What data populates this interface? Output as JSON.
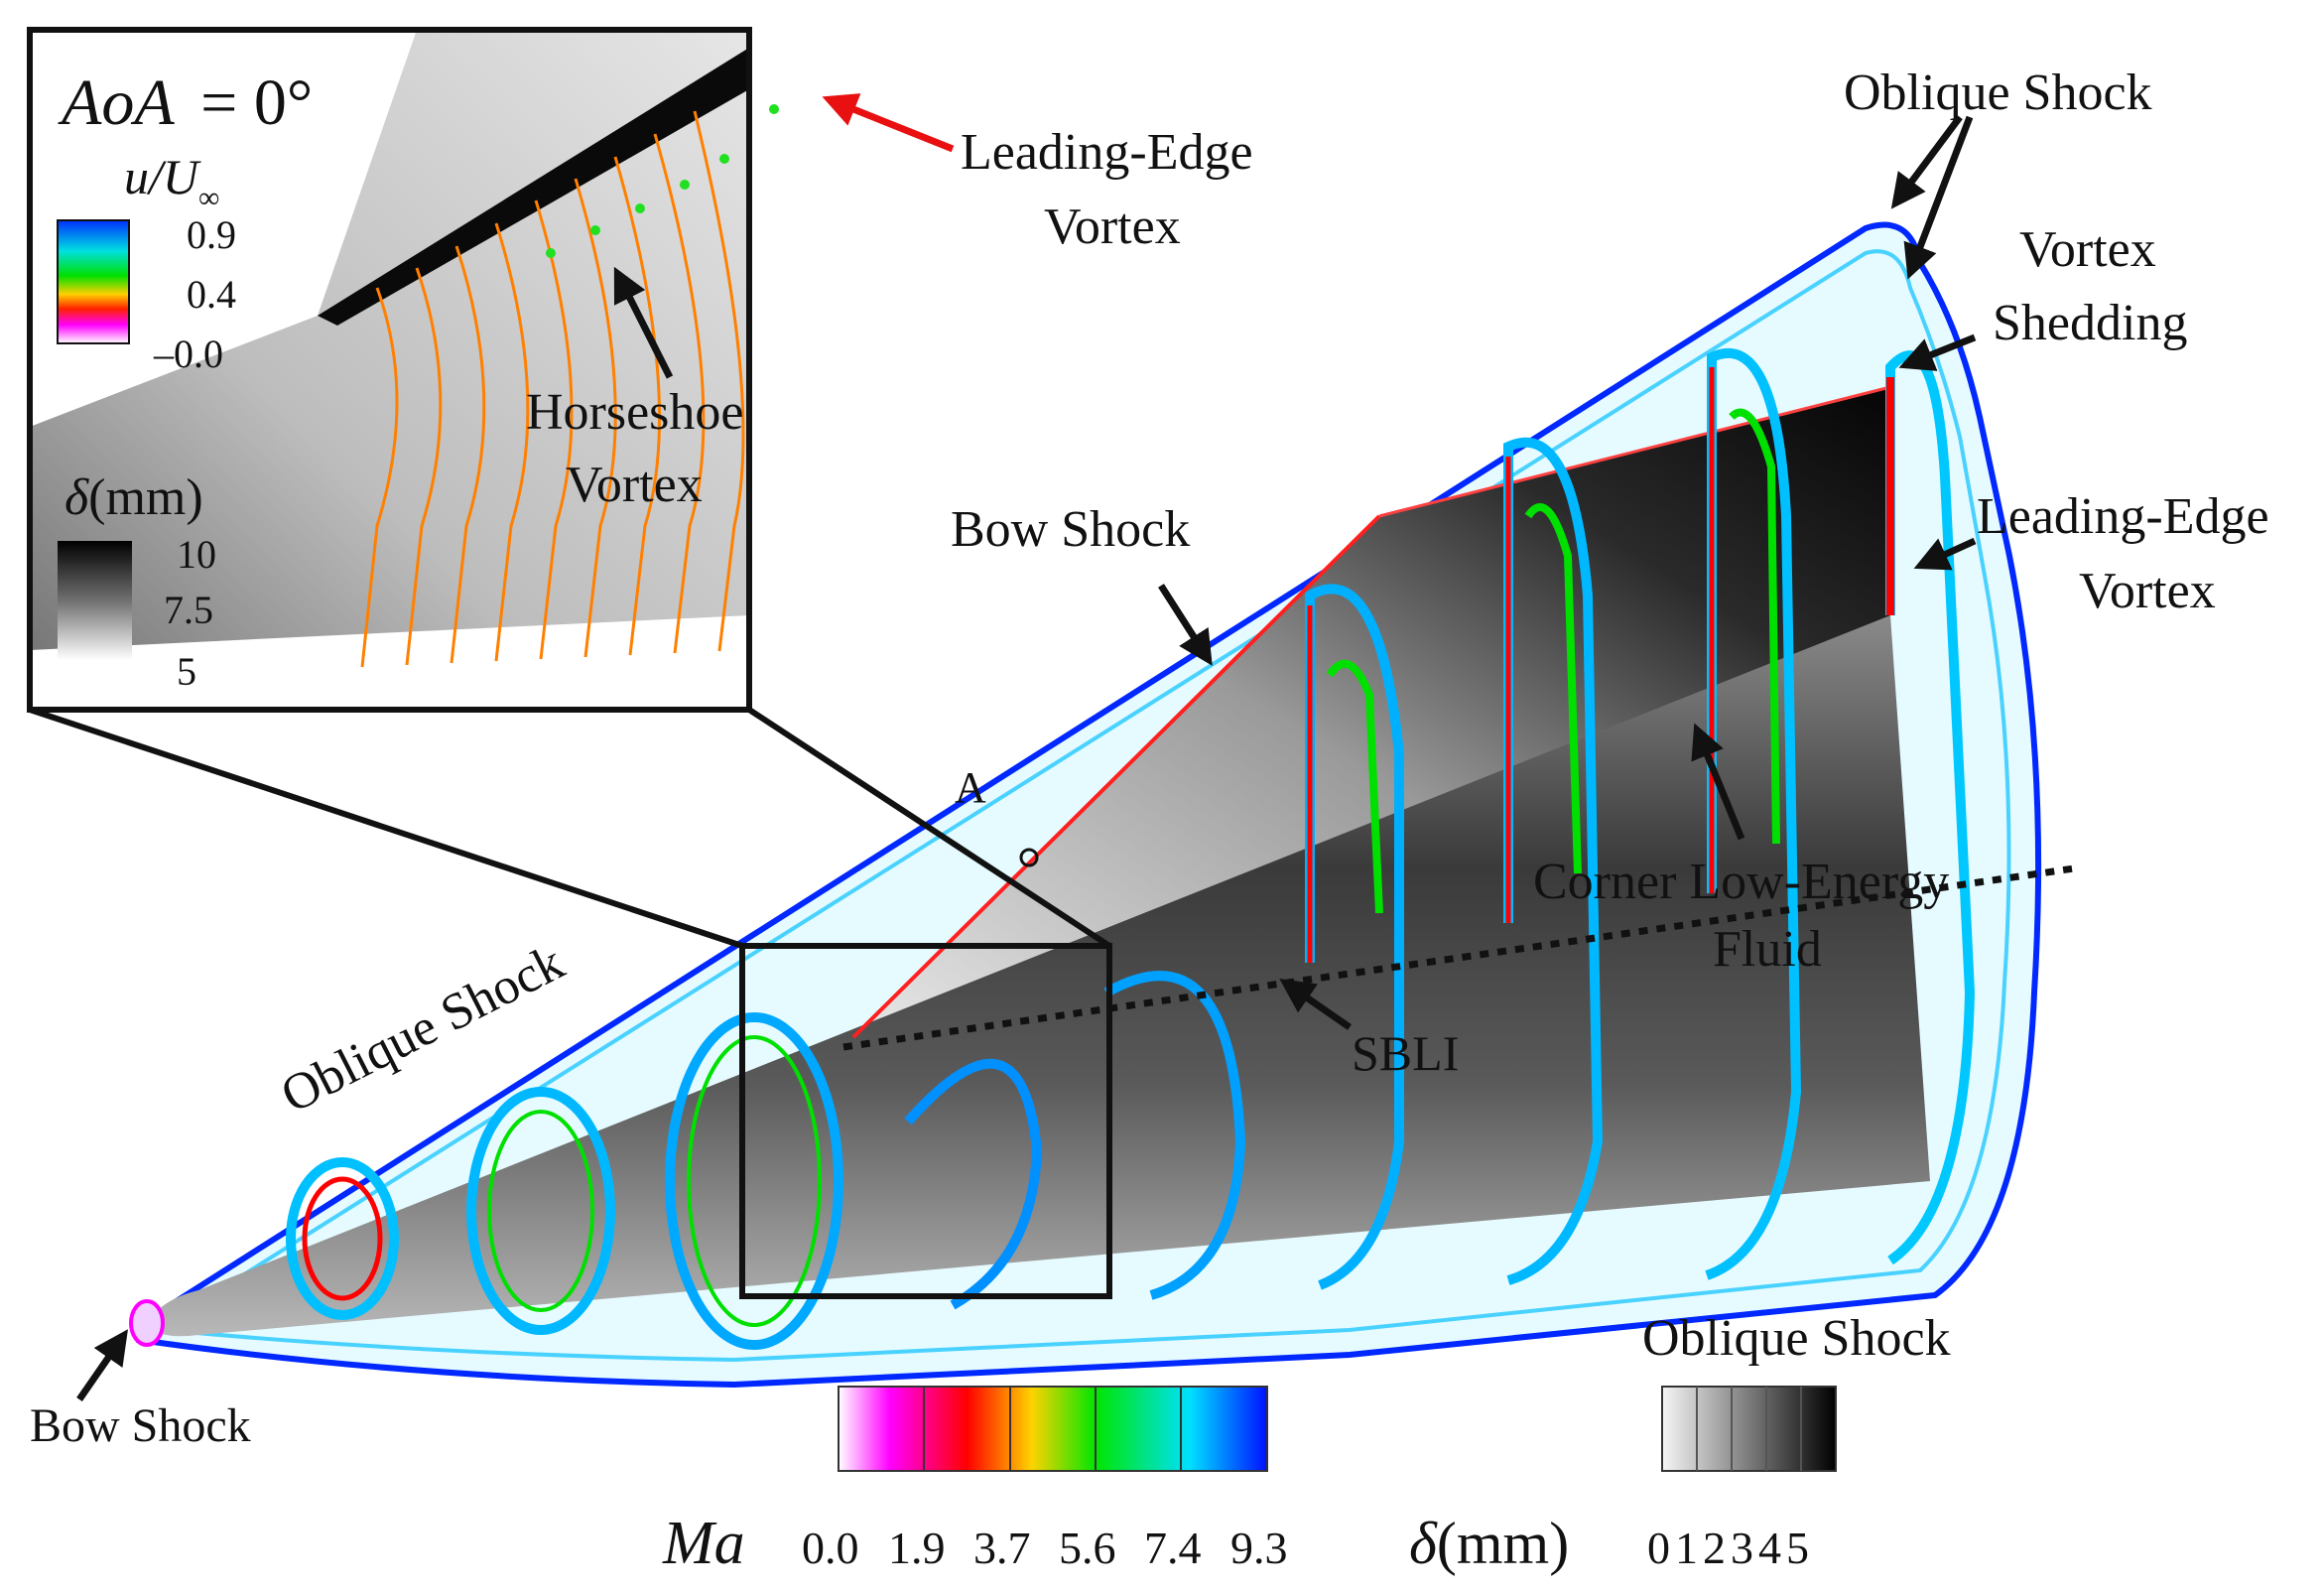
{
  "figure": {
    "labels": {
      "oblique_shock_top": "Oblique Shock",
      "vortex_shedding_1": "Vortex",
      "vortex_shedding_2": "Shedding",
      "leading_edge_vortex_right_1": "Leading-Edge",
      "leading_edge_vortex_right_2": "Vortex",
      "bow_shock_upper": "Bow Shock",
      "point_a": "A",
      "oblique_shock_left": "Oblique Shock",
      "sbli": "SBLI",
      "corner_fluid_1": "Corner Low-Energy",
      "corner_fluid_2": "Fluid",
      "bow_shock_nose": "Bow Shock",
      "oblique_shock_bottom": "Oblique Shock"
    },
    "inset": {
      "aoa_label": "AoA",
      "aoa_value": "= 0°",
      "u_legend_title_u": "u",
      "u_legend_title_U": "/U",
      "u_legend_title_sub": "∞",
      "u_legend_ticks": [
        "0.9",
        "0.4",
        "–0.0"
      ],
      "delta_legend_title_sym": "δ",
      "delta_legend_title_unit": "(mm)",
      "delta_legend_ticks": [
        "10",
        "7.5",
        "5"
      ],
      "leading_edge_vortex_1": "Leading-Edge",
      "leading_edge_vortex_2": "Vortex",
      "horseshoe_vortex_1": "Horseshoe",
      "horseshoe_vortex_2": "Vortex"
    },
    "ma_legend": {
      "title": "Ma",
      "ticks": [
        "0.0",
        "1.9",
        "3.7",
        "5.6",
        "7.4",
        "9.3"
      ]
    },
    "delta_legend": {
      "title_sym": "δ",
      "title_unit": "(mm)",
      "ticks": [
        "0",
        "1",
        "2",
        "3",
        "4",
        "5"
      ]
    },
    "colors": {
      "contour_scale": [
        "#ffffff",
        "#ff00ff",
        "#ff0000",
        "#ffff00",
        "#00ff00",
        "#00ffff",
        "#0000ff"
      ],
      "shading_scale": [
        "#f4f4f4",
        "#000000"
      ],
      "arrow": "#111111",
      "arrow_red": "#e81010"
    }
  }
}
